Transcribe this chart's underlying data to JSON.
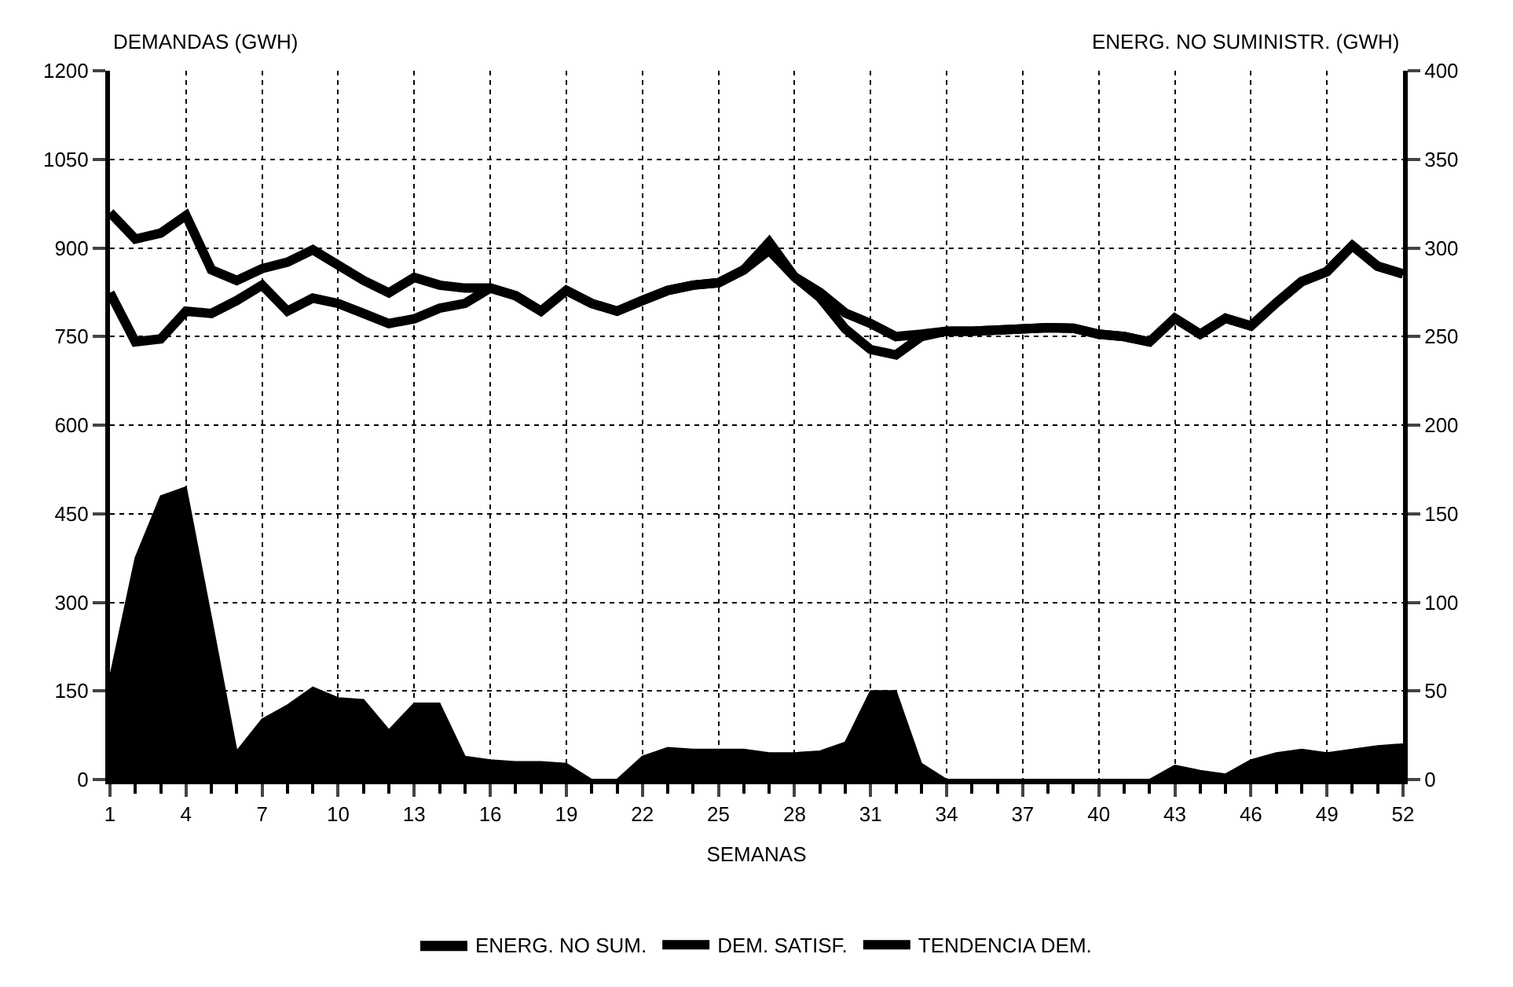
{
  "chart_data": {
    "type": "line",
    "xlabel": "SEMANAS",
    "ylabel": "DEMANDAS (GWH)",
    "y2label": "ENERG. NO SUMINISTR. (GWH)",
    "x": [
      1,
      2,
      3,
      4,
      5,
      6,
      7,
      8,
      9,
      10,
      11,
      12,
      13,
      14,
      15,
      16,
      17,
      18,
      19,
      20,
      21,
      22,
      23,
      24,
      25,
      26,
      27,
      28,
      29,
      30,
      31,
      32,
      33,
      34,
      35,
      36,
      37,
      38,
      39,
      40,
      41,
      42,
      43,
      44,
      45,
      46,
      47,
      48,
      49,
      50,
      51,
      52
    ],
    "series": [
      {
        "name": "ENERG. NO SUM.",
        "type": "area",
        "axis": "y2",
        "color": "#000000",
        "values": [
          58,
          125,
          160,
          165,
          91,
          16,
          34,
          42,
          52,
          46,
          45,
          28,
          43,
          43,
          13,
          11,
          10,
          10,
          9,
          0,
          0,
          13,
          18,
          17,
          17,
          17,
          15,
          15,
          16,
          21,
          50,
          50,
          9,
          0,
          0,
          0,
          0,
          0,
          0,
          0,
          0,
          0,
          8,
          5,
          3,
          11,
          15,
          17,
          15,
          17,
          19,
          20
        ]
      },
      {
        "name": "DEM. SATISF.",
        "color": "#000000",
        "values": [
          824,
          741,
          746,
          793,
          789,
          811,
          837,
          793,
          815,
          806,
          789,
          772,
          780,
          798,
          806,
          832,
          819,
          793,
          828,
          806,
          793,
          811,
          828,
          837,
          841,
          863,
          896,
          851,
          816,
          763,
          728,
          719,
          750,
          759,
          759,
          761,
          763,
          765,
          764,
          754,
          750,
          741,
          781,
          754,
          781,
          768,
          807,
          843,
          860,
          904,
          869,
          856
        ]
      },
      {
        "name": "TENDENCIA DEM.",
        "color": "#000000",
        "values": [
          960,
          915,
          925,
          955,
          863,
          845,
          865,
          876,
          897,
          871,
          845,
          824,
          850,
          837,
          832,
          832,
          819,
          793,
          828,
          806,
          793,
          811,
          828,
          837,
          841,
          863,
          910,
          851,
          825,
          790,
          772,
          750,
          754,
          759,
          759,
          761,
          763,
          765,
          764,
          754,
          750,
          741,
          781,
          754,
          781,
          768,
          807,
          843,
          860,
          904,
          869,
          856
        ]
      }
    ],
    "xlim": [
      1,
      52
    ],
    "xticks": [
      1,
      {
        "value": 2,
        "label": null
      },
      {
        "value": 3,
        "label": null
      },
      4,
      {
        "value": 5,
        "label": null
      },
      {
        "value": 6,
        "label": null
      },
      7,
      {
        "value": 8,
        "label": null
      },
      {
        "value": 9,
        "label": null
      },
      10,
      {
        "value": 11,
        "label": null
      },
      {
        "value": 12,
        "label": null
      },
      13,
      {
        "value": 14,
        "label": null
      },
      {
        "value": 15,
        "label": null
      },
      16,
      {
        "value": 17,
        "label": null
      },
      {
        "value": 18,
        "label": null
      },
      19,
      {
        "value": 20,
        "label": null
      },
      {
        "value": 21,
        "label": null
      },
      22,
      {
        "value": 23,
        "label": null
      },
      {
        "value": 24,
        "label": null
      },
      25,
      {
        "value": 26,
        "label": null
      },
      {
        "value": 27,
        "label": null
      },
      28,
      {
        "value": 29,
        "label": null
      },
      {
        "value": 30,
        "label": null
      },
      31,
      {
        "value": 32,
        "label": null
      },
      {
        "value": 33,
        "label": null
      },
      34,
      {
        "value": 35,
        "label": null
      },
      {
        "value": 36,
        "label": null
      },
      37,
      {
        "value": 38,
        "label": null
      },
      {
        "value": 39,
        "label": null
      },
      40,
      {
        "value": 41,
        "label": null
      },
      {
        "value": 42,
        "label": null
      },
      43,
      {
        "value": 44,
        "label": null
      },
      {
        "value": 45,
        "label": null
      },
      46,
      {
        "value": 47,
        "label": null
      },
      {
        "value": 48,
        "label": null
      },
      49,
      {
        "value": 50,
        "label": null
      },
      {
        "value": 51,
        "label": null
      },
      52
    ],
    "ylim": [
      0,
      1200
    ],
    "yticks": [
      0,
      150,
      300,
      450,
      600,
      750,
      900,
      1050,
      1200
    ],
    "y2lim": [
      0,
      400
    ],
    "y2ticks": [
      0,
      50,
      100,
      150,
      200,
      250,
      300,
      350,
      400
    ],
    "grid": true,
    "line_style": "solid",
    "marker": "none",
    "legend": "bottom"
  }
}
